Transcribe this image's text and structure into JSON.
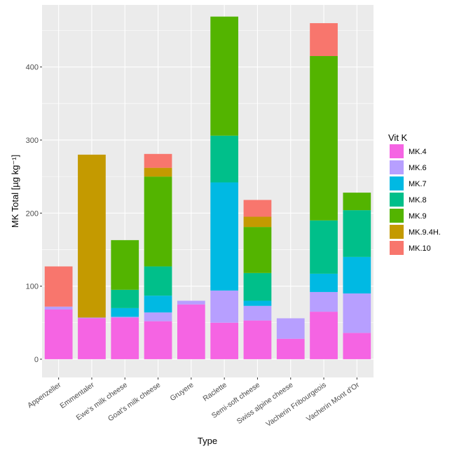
{
  "chart_data": {
    "type": "bar",
    "stacked": true,
    "xlabel": "Type",
    "ylabel": "MK Total [µg kg⁻¹]",
    "ylim": [
      -25,
      485
    ],
    "yticks": [
      0,
      100,
      200,
      300,
      400
    ],
    "grid": true,
    "legend_title": "Vit K",
    "legend_position": "right",
    "categories": [
      "Appenzeller",
      "Emmentaler",
      "Ewe's milk cheese",
      "Goat's milk cheese",
      "Gruyere",
      "Raclette",
      "Semi-soft cheese",
      "Swiss alpine cheese",
      "Vacherin Fribourgeois",
      "Vacherin Mont d'Or"
    ],
    "series": [
      {
        "name": "MK.4",
        "color": "#F564E3",
        "values": [
          68,
          56,
          57,
          52,
          75,
          50,
          53,
          28,
          65,
          36
        ]
      },
      {
        "name": "MK.6",
        "color": "#B79FFF",
        "values": [
          4,
          1,
          1,
          12,
          5,
          44,
          20,
          28,
          27,
          54
        ]
      },
      {
        "name": "MK.7",
        "color": "#00B9E3",
        "values": [
          0,
          0,
          12,
          23,
          0,
          148,
          7,
          0,
          25,
          50
        ]
      },
      {
        "name": "MK.8",
        "color": "#00BF8A",
        "values": [
          0,
          0,
          25,
          40,
          0,
          64,
          38,
          0,
          73,
          64
        ]
      },
      {
        "name": "MK.9",
        "color": "#53B400",
        "values": [
          0,
          0,
          68,
          123,
          0,
          163,
          63,
          0,
          225,
          24
        ]
      },
      {
        "name": "MK.9.4H.",
        "color": "#C49A00",
        "values": [
          0,
          223,
          0,
          12,
          0,
          0,
          14,
          0,
          0,
          0
        ]
      },
      {
        "name": "MK.10",
        "color": "#F8766D",
        "values": [
          55,
          0,
          0,
          19,
          0,
          0,
          23,
          0,
          45,
          0
        ]
      }
    ]
  }
}
